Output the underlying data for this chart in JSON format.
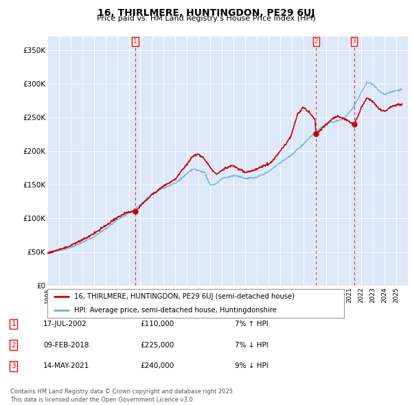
{
  "title": "16, THIRLMERE, HUNTINGDON, PE29 6UJ",
  "subtitle": "Price paid vs. HM Land Registry's House Price Index (HPI)",
  "legend_line1": "16, THIRLMERE, HUNTINGDON, PE29 6UJ (semi-detached house)",
  "legend_line2": "HPI: Average price, semi-detached house, Huntingdonshire",
  "table_rows": [
    [
      "1",
      "17-JUL-2002",
      "£110,000",
      "7% ↑ HPI"
    ],
    [
      "2",
      "09-FEB-2018",
      "£225,000",
      "7% ↓ HPI"
    ],
    [
      "3",
      "14-MAY-2021",
      "£240,000",
      "9% ↓ HPI"
    ]
  ],
  "transaction_years": [
    2002.54,
    2018.11,
    2021.37
  ],
  "transaction_prices": [
    110000,
    225000,
    240000
  ],
  "footer": "Contains HM Land Registry data © Crown copyright and database right 2025.\nThis data is licensed under the Open Government Licence v3.0.",
  "hpi_color": "#6baed6",
  "price_color": "#cc0000",
  "dashed_color": "#cc0000",
  "ylim": [
    0,
    370000
  ],
  "yticks": [
    0,
    50000,
    100000,
    150000,
    200000,
    250000,
    300000,
    350000
  ],
  "background_color": "#dde8f8",
  "xlim_start": 1995,
  "xlim_end": 2026
}
